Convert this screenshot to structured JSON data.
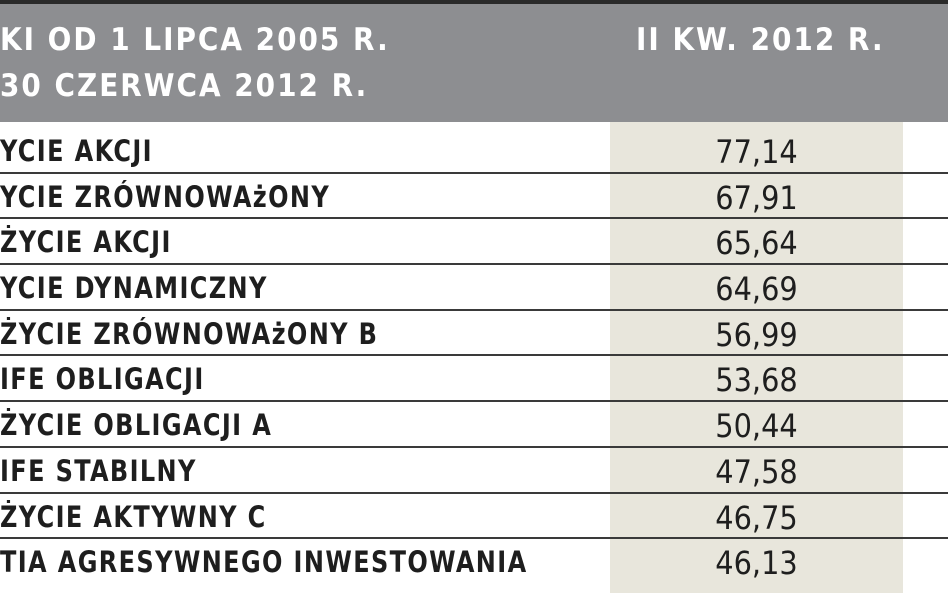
{
  "header": {
    "left_line1": "KI OD 1 LIPCA 2005 R.",
    "left_line2": "30 CZERWCA 2012 R.",
    "right_label": "II KW. 2012 R."
  },
  "rows": [
    {
      "name": "YCIE AKCJI",
      "value": "77,14"
    },
    {
      "name": "YCIE ZRÓWNOWAżONY",
      "value": "67,91"
    },
    {
      "name": " ŻYCIE AKCJI",
      "value": "65,64"
    },
    {
      "name": "YCIE DYNAMICZNY",
      "value": "64,69"
    },
    {
      "name": " ŻYCIE ZRÓWNOWAżONY B",
      "value": "56,99"
    },
    {
      "name": "IFE OBLIGACJI",
      "value": "53,68"
    },
    {
      "name": " ŻYCIE OBLIGACJI A",
      "value": "50,44"
    },
    {
      "name": "IFE STABILNY",
      "value": "47,58"
    },
    {
      "name": " ŻYCIE AKTYWNY C",
      "value": "46,75"
    },
    {
      "name": "TIA AGRESYWNEGO INWESTOWANIA",
      "value": "46,13"
    }
  ],
  "colors": {
    "header_bg": "#8d8e91",
    "value_column_bg": "#e8e6dc",
    "rule": "#3a3a3a",
    "text": "#1e1e1e"
  }
}
